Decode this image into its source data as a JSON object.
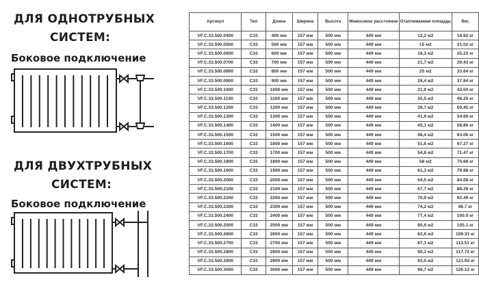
{
  "left": {
    "one_pipe": {
      "title_line1": "ДЛЯ ОДНОТРУБНЫХ",
      "title_line2": "СИСТЕМ:",
      "subtitle": "Боковое подключение"
    },
    "two_pipe": {
      "title_line1": "ДЛЯ ДВУХТРУБНЫХ",
      "title_line2": "СИСТЕМ:",
      "subtitle": "Боковое подключение"
    }
  },
  "table": {
    "headers": [
      "Артикул",
      "Тип",
      "Длина",
      "Ширина",
      "Высота",
      "Межосевое расстояние",
      "Отапливаемая площадь",
      "Вес"
    ],
    "rows": [
      [
        "VF.C.33.500.0400",
        "C33",
        "400 мм",
        "157 мм",
        "500 мм",
        "449 мм",
        "12,2 м2",
        "16.82 кг"
      ],
      [
        "VF.C.33.500.0500",
        "C33",
        "500 мм",
        "157 мм",
        "500 мм",
        "449 мм",
        "15 м2",
        "21.02 кг"
      ],
      [
        "VF.C.33.500.0600",
        "C33",
        "600 мм",
        "157 мм",
        "500 мм",
        "449 мм",
        "18,3 м2",
        "25.23 кг"
      ],
      [
        "VF.C.33.500.0700",
        "C33",
        "700 мм",
        "157 мм",
        "500 мм",
        "449 мм",
        "21,7 м2",
        "29.43 кг"
      ],
      [
        "VF.C.33.500.0800",
        "C33",
        "800 мм",
        "157 мм",
        "500 мм",
        "449 мм",
        "25 м2",
        "33.64 кг"
      ],
      [
        "VF.C.33.500.0900",
        "C33",
        "900 мм",
        "157 мм",
        "500 мм",
        "449 мм",
        "28,4 м2",
        "37.84 кг"
      ],
      [
        "VF.C.33.500.1000",
        "C33",
        "1000 мм",
        "157 мм",
        "500 мм",
        "449 мм",
        "31,9 м2",
        "42.04 кг"
      ],
      [
        "VF.C.33.500.1100",
        "C33",
        "1100 мм",
        "157 мм",
        "500 мм",
        "449 мм",
        "35,5 м2",
        "46.25 кг"
      ],
      [
        "VF.C.33.500.1200",
        "C33",
        "1200 мм",
        "157 мм",
        "500 мм",
        "449 мм",
        "38,7 м2",
        "50.45 кг"
      ],
      [
        "VF.C.33.500.1300",
        "C33",
        "1300 мм",
        "157 мм",
        "500 мм",
        "449 мм",
        "41,9 м2",
        "54.66 кг"
      ],
      [
        "VF.C.33.500.1400",
        "C33",
        "1400 мм",
        "157 мм",
        "500 мм",
        "449 мм",
        "45,1 м2",
        "58.86 кг"
      ],
      [
        "VF.C.33.500.1500",
        "C33",
        "1500 мм",
        "157 мм",
        "500 мм",
        "449 мм",
        "48,4 м2",
        "63.06 кг"
      ],
      [
        "VF.C.33.500.1600",
        "C33",
        "1600 мм",
        "157 мм",
        "500 мм",
        "449 мм",
        "51,6 м2",
        "67.27 кг"
      ],
      [
        "VF.C.33.500.1700",
        "C33",
        "1700 мм",
        "157 мм",
        "500 мм",
        "449 мм",
        "54,8 м2",
        "71.47 кг"
      ],
      [
        "VF.C.33.500.1800",
        "C33",
        "1800 мм",
        "157 мм",
        "500 мм",
        "449 мм",
        "58 м2",
        "75.68 кг"
      ],
      [
        "VF.C.33.500.1900",
        "C33",
        "1900 мм",
        "157 мм",
        "500 мм",
        "449 мм",
        "61,3 м2",
        "79.88 кг"
      ],
      [
        "VF.C.33.500.2000",
        "C33",
        "2000 мм",
        "157 мм",
        "500 мм",
        "449 мм",
        "64,5 м2",
        "84.08 кг"
      ],
      [
        "VF.C.33.500.2100",
        "C33",
        "2100 мм",
        "157 мм",
        "500 мм",
        "449 мм",
        "67,7 м2",
        "88.29 кг"
      ],
      [
        "VF.C.33.500.2200",
        "C33",
        "2200 мм",
        "157 мм",
        "500 мм",
        "449 мм",
        "70,9 м2",
        "92.49 кг"
      ],
      [
        "VF.C.33.500.2300",
        "C33",
        "2300 мм",
        "157 мм",
        "500 мм",
        "449 мм",
        "74,2 м2",
        "96.7 кг"
      ],
      [
        "VF.C.33.500.2400",
        "C33",
        "2400 мм",
        "157 мм",
        "500 мм",
        "449 мм",
        "77,4 м2",
        "100.9 кг"
      ],
      [
        "VF.C.33.500.2500",
        "C33",
        "2500 мм",
        "157 мм",
        "500 мм",
        "449 мм",
        "80,6 м2",
        "105.1 кг"
      ],
      [
        "VF.C.33.500.2600",
        "C33",
        "2600 мм",
        "157 мм",
        "500 мм",
        "449 мм",
        "83,8 м2",
        "109.31 кг"
      ],
      [
        "VF.C.33.500.2700",
        "C33",
        "2700 мм",
        "157 мм",
        "500 мм",
        "449 мм",
        "87,1 м2",
        "113.51 кг"
      ],
      [
        "VF.C.33.500.2800",
        "C33",
        "2800 мм",
        "157 мм",
        "500 мм",
        "449 мм",
        "90,3 м2",
        "117.72 кг"
      ],
      [
        "VF.C.33.500.2900",
        "C33",
        "2900 мм",
        "157 мм",
        "500 мм",
        "449 мм",
        "93,5 м2",
        "121.92 кг"
      ],
      [
        "VF.C.33.500.3000",
        "C33",
        "3000 мм",
        "157 мм",
        "500 мм",
        "449 мм",
        "96,7 м2",
        "126.12 кг"
      ]
    ]
  }
}
